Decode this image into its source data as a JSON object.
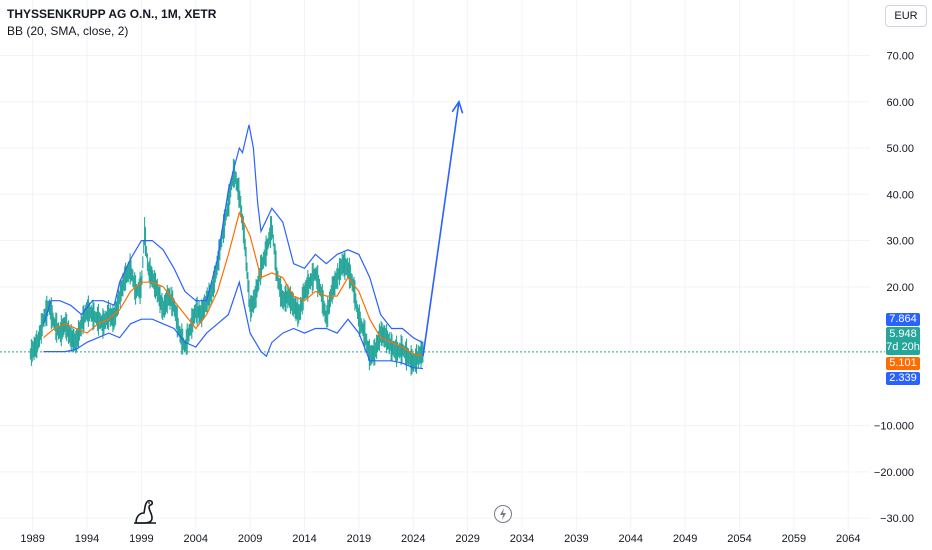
{
  "header": {
    "symbol_line": "THYSSENKRUPP AG O.N., 1M, XETR",
    "indicator": "BB (20, SMA, close, 2)",
    "currency": "EUR"
  },
  "price_tags": {
    "upper": "7.864",
    "last": "5.948",
    "countdown": "7d 20h",
    "basis": "5.101",
    "lower": "2.339"
  },
  "colors": {
    "candles": "#26a69a",
    "basis": "#ff6d00",
    "bands": "#2962ff",
    "arrow": "#2962ff",
    "last_tag": "#26a69a",
    "price_line": "#26a69a"
  },
  "icons": [
    "tradingview-logo-icon",
    "lightning-icon"
  ],
  "chart_data": {
    "type": "line",
    "title": "THYSSENKRUPP AG O.N., 1M, XETR",
    "xlabel": "",
    "ylabel": "",
    "xlim": [
      1986,
      2066
    ],
    "ylim": [
      -33,
      82
    ],
    "x_ticks": [
      "1989",
      "1994",
      "1999",
      "2004",
      "2009",
      "2014",
      "2019",
      "2024",
      "2029",
      "2034",
      "2039",
      "2044",
      "2049",
      "2054",
      "2059",
      "2064"
    ],
    "y_ticks": [
      {
        "v": 70,
        "label": "70.00"
      },
      {
        "v": 60,
        "label": "60.00"
      },
      {
        "v": 50,
        "label": "50.00"
      },
      {
        "v": 40,
        "label": "40.00"
      },
      {
        "v": 30,
        "label": "30.00"
      },
      {
        "v": 20,
        "label": "20.00"
      },
      {
        "v": -10,
        "label": "−10.000"
      },
      {
        "v": -20,
        "label": "−20.000"
      },
      {
        "v": -30,
        "label": "−30.00"
      }
    ],
    "last_price": 5.948,
    "series": [
      {
        "kind": "price",
        "points": [
          [
            1988.8,
            5.5
          ],
          [
            1989.5,
            8
          ],
          [
            1990,
            13
          ],
          [
            1990.5,
            16
          ],
          [
            1991,
            12
          ],
          [
            1991.5,
            10
          ],
          [
            1992,
            12
          ],
          [
            1992.5,
            9
          ],
          [
            1993,
            8
          ],
          [
            1993.5,
            12
          ],
          [
            1994,
            15
          ],
          [
            1994.5,
            14
          ],
          [
            1995,
            13
          ],
          [
            1995.5,
            12
          ],
          [
            1996,
            14
          ],
          [
            1996.5,
            13
          ],
          [
            1997,
            18
          ],
          [
            1997.5,
            22
          ],
          [
            1998,
            24
          ],
          [
            1998.5,
            19
          ],
          [
            1999,
            20
          ],
          [
            1999.3,
            32
          ],
          [
            1999.6,
            24
          ],
          [
            2000,
            22
          ],
          [
            2000.5,
            19
          ],
          [
            2001,
            15
          ],
          [
            2001.5,
            18
          ],
          [
            2002,
            16
          ],
          [
            2002.5,
            10
          ],
          [
            2003,
            7
          ],
          [
            2003.5,
            11
          ],
          [
            2004,
            15
          ],
          [
            2004.5,
            14
          ],
          [
            2005,
            17
          ],
          [
            2005.5,
            19
          ],
          [
            2006,
            25
          ],
          [
            2006.5,
            32
          ],
          [
            2007,
            38
          ],
          [
            2007.5,
            45
          ],
          [
            2008,
            40
          ],
          [
            2008.5,
            30
          ],
          [
            2009,
            15
          ],
          [
            2009.5,
            18
          ],
          [
            2010,
            24
          ],
          [
            2010.5,
            28
          ],
          [
            2011,
            33
          ],
          [
            2011.5,
            22
          ],
          [
            2012,
            17
          ],
          [
            2012.5,
            18
          ],
          [
            2013,
            16
          ],
          [
            2013.5,
            14
          ],
          [
            2014,
            19
          ],
          [
            2014.5,
            21
          ],
          [
            2015,
            23
          ],
          [
            2015.5,
            19
          ],
          [
            2016,
            13
          ],
          [
            2016.5,
            19
          ],
          [
            2017,
            22
          ],
          [
            2017.5,
            25
          ],
          [
            2018,
            24
          ],
          [
            2018.5,
            20
          ],
          [
            2019,
            13
          ],
          [
            2019.5,
            10
          ],
          [
            2020,
            5
          ],
          [
            2020.5,
            6
          ],
          [
            2021,
            10
          ],
          [
            2021.5,
            9
          ],
          [
            2022,
            7
          ],
          [
            2022.5,
            6
          ],
          [
            2023,
            6.5
          ],
          [
            2023.5,
            5
          ],
          [
            2024,
            3.5
          ],
          [
            2024.5,
            5
          ],
          [
            2024.9,
            5.948
          ]
        ]
      },
      {
        "kind": "basis",
        "name": "",
        "points": [
          [
            1990,
            9
          ],
          [
            1991,
            11
          ],
          [
            1992,
            12
          ],
          [
            1993,
            11
          ],
          [
            1994,
            10
          ],
          [
            1995,
            12
          ],
          [
            1996,
            13
          ],
          [
            1997,
            15
          ],
          [
            1998,
            19
          ],
          [
            1999,
            21
          ],
          [
            2000,
            21
          ],
          [
            2001,
            20
          ],
          [
            2002,
            17
          ],
          [
            2003,
            14
          ],
          [
            2004,
            11
          ],
          [
            2005,
            14
          ],
          [
            2006,
            19
          ],
          [
            2007,
            27
          ],
          [
            2008,
            36
          ],
          [
            2009,
            31
          ],
          [
            2010,
            22
          ],
          [
            2011,
            23
          ],
          [
            2012,
            22
          ],
          [
            2013,
            18
          ],
          [
            2014,
            17
          ],
          [
            2015,
            19
          ],
          [
            2016,
            18
          ],
          [
            2017,
            18
          ],
          [
            2018,
            22
          ],
          [
            2019,
            19
          ],
          [
            2020,
            13
          ],
          [
            2021,
            9
          ],
          [
            2022,
            8
          ],
          [
            2023,
            7
          ],
          [
            2024,
            5.5
          ],
          [
            2024.9,
            5.101
          ]
        ]
      },
      {
        "kind": "upper_band",
        "name": "",
        "points": [
          [
            1990,
            12
          ],
          [
            1990.7,
            17
          ],
          [
            1991.5,
            17
          ],
          [
            1992.5,
            16
          ],
          [
            1993.5,
            14
          ],
          [
            1994.5,
            17
          ],
          [
            1995.5,
            17
          ],
          [
            1996.5,
            16
          ],
          [
            1997,
            21
          ],
          [
            1998,
            26
          ],
          [
            1999,
            30
          ],
          [
            2000,
            30
          ],
          [
            2001,
            28
          ],
          [
            2002,
            24
          ],
          [
            2003,
            19
          ],
          [
            2004,
            17
          ],
          [
            2005,
            17
          ],
          [
            2006,
            26
          ],
          [
            2007,
            41
          ],
          [
            2008,
            50
          ],
          [
            2008.3,
            49
          ],
          [
            2008.9,
            55
          ],
          [
            2009.3,
            50
          ],
          [
            2009.7,
            38
          ],
          [
            2010,
            32
          ],
          [
            2011,
            37
          ],
          [
            2012,
            34
          ],
          [
            2013,
            25
          ],
          [
            2014,
            24
          ],
          [
            2015,
            27
          ],
          [
            2016,
            25
          ],
          [
            2017,
            27
          ],
          [
            2018,
            28
          ],
          [
            2019,
            27
          ],
          [
            2020,
            22
          ],
          [
            2021,
            14
          ],
          [
            2022,
            11
          ],
          [
            2023,
            11
          ],
          [
            2024,
            9
          ],
          [
            2024.9,
            7.864
          ]
        ]
      },
      {
        "kind": "lower_band",
        "name": "",
        "points": [
          [
            1990,
            6
          ],
          [
            1991,
            6
          ],
          [
            1992,
            6
          ],
          [
            1993,
            6.5
          ],
          [
            1994,
            8
          ],
          [
            1995,
            9
          ],
          [
            1996,
            10
          ],
          [
            1997,
            9
          ],
          [
            1998,
            12
          ],
          [
            1999,
            13
          ],
          [
            2000,
            13
          ],
          [
            2001,
            12
          ],
          [
            2002,
            11
          ],
          [
            2003,
            8
          ],
          [
            2004,
            7
          ],
          [
            2005,
            10
          ],
          [
            2006,
            12
          ],
          [
            2007,
            14
          ],
          [
            2008,
            21
          ],
          [
            2009,
            10
          ],
          [
            2010,
            6
          ],
          [
            2010.5,
            5
          ],
          [
            2011,
            8
          ],
          [
            2012,
            10
          ],
          [
            2013,
            11
          ],
          [
            2014,
            10
          ],
          [
            2015,
            11
          ],
          [
            2016,
            11
          ],
          [
            2017,
            10
          ],
          [
            2018,
            13
          ],
          [
            2019,
            10
          ],
          [
            2020,
            4
          ],
          [
            2021,
            4
          ],
          [
            2022,
            4
          ],
          [
            2023,
            3.5
          ],
          [
            2024,
            2.5
          ],
          [
            2024.9,
            2.339
          ]
        ]
      },
      {
        "kind": "arrow",
        "points": [
          [
            2024.9,
            5
          ],
          [
            2028.2,
            60
          ]
        ]
      }
    ]
  }
}
